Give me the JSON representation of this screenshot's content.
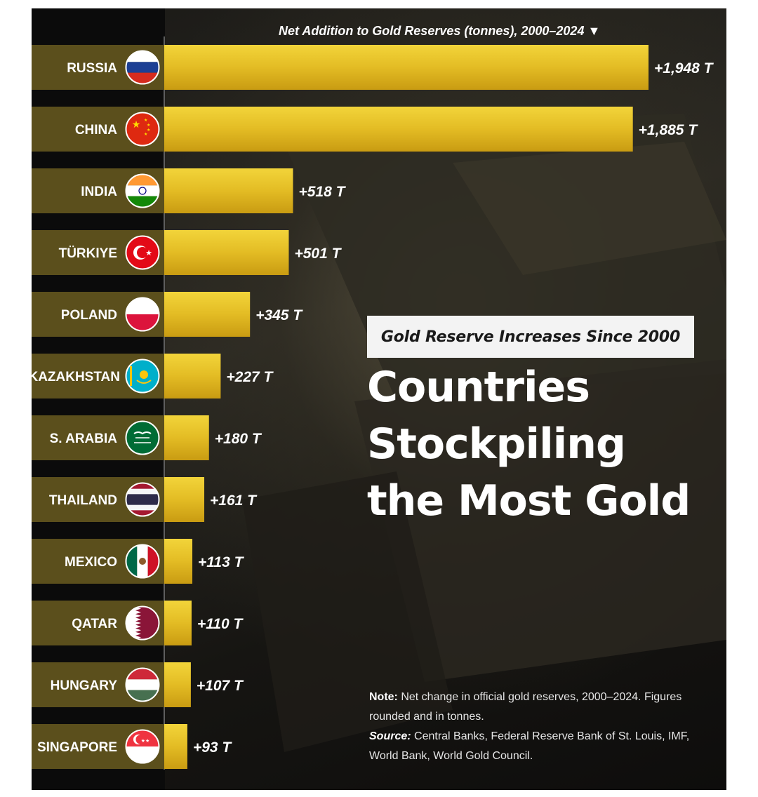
{
  "chart_data": {
    "type": "bar",
    "orientation": "horizontal",
    "subtitle": "Gold Reserve Increases Since 2000",
    "title": "Countries Stockpiling the Most Gold",
    "axis_title": "Net Addition to Gold Reserves (tonnes), 2000–2024 ▼",
    "xlim": [
      0,
      1948
    ],
    "categories": [
      "RUSSIA",
      "CHINA",
      "INDIA",
      "TÜRKIYE",
      "POLAND",
      "KAZAKHSTAN",
      "S. ARABIA",
      "THAILAND",
      "MEXICO",
      "QATAR",
      "HUNGARY",
      "SINGAPORE"
    ],
    "values": [
      1948,
      1885,
      518,
      501,
      345,
      227,
      180,
      161,
      113,
      110,
      107,
      93
    ],
    "value_labels": [
      "+1,948 T",
      "+1,885 T",
      "+518 T",
      "+501 T",
      "+345 T",
      "+227 T",
      "+180 T",
      "+161 T",
      "+113 T",
      "+110 T",
      "+107 T",
      "+93 T"
    ],
    "flag_icons": [
      "russia-flag-icon",
      "china-flag-icon",
      "india-flag-icon",
      "turkiye-flag-icon",
      "poland-flag-icon",
      "kazakhstan-flag-icon",
      "saudi-arabia-flag-icon",
      "thailand-flag-icon",
      "mexico-flag-icon",
      "qatar-flag-icon",
      "hungary-flag-icon",
      "singapore-flag-icon"
    ],
    "bar_color": "#e3bc24",
    "label_band_color": "#5b4f1c"
  },
  "note": {
    "label": "Note:",
    "text": " Net change in official gold reserves, 2000–2024. Figures rounded and in tonnes."
  },
  "source": {
    "label": "Source:",
    "text": " Central Banks, Federal Reserve Bank of St. Louis, IMF, World Bank, World Gold Council."
  }
}
